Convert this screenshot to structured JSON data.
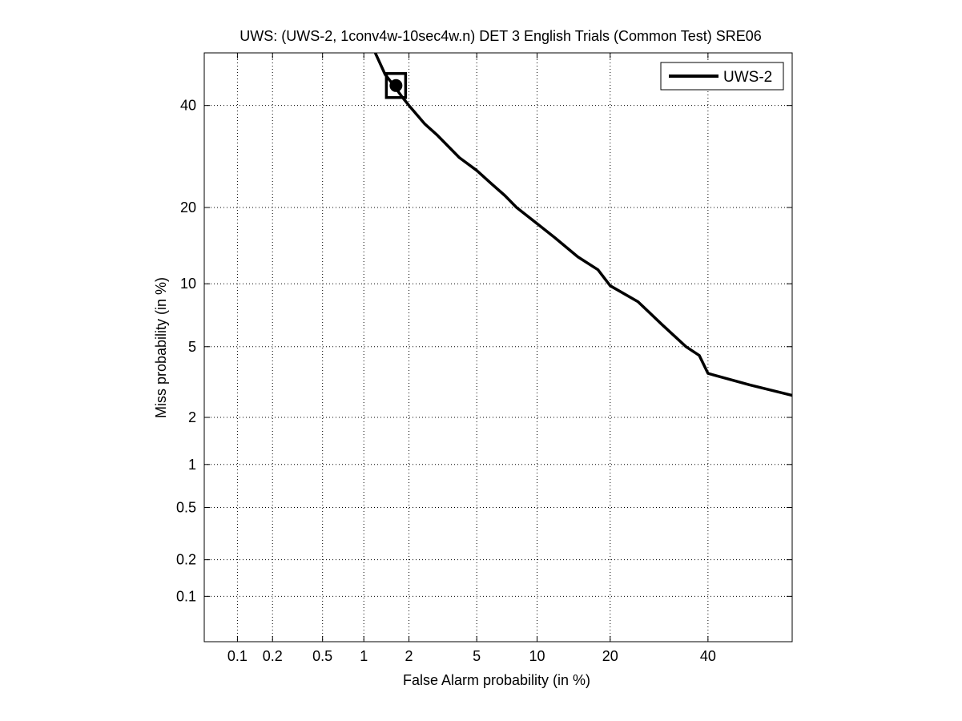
{
  "chart_data": {
    "type": "line",
    "title": "UWS: (UWS-2, 1conv4w-10sec4w.n) DET 3 English Trials (Common Test) SRE06",
    "xlabel": "False Alarm probability (in %)",
    "ylabel": "Miss probability (in %)",
    "scale": "normal-deviate (probit)",
    "grid": true,
    "legend_position": "top-right",
    "xlim": [
      0.05,
      60
    ],
    "ylim": [
      0.04,
      52
    ],
    "x_ticks": [
      0.1,
      0.2,
      0.5,
      1,
      2,
      5,
      10,
      20,
      40
    ],
    "x_tick_labels": [
      "0.1",
      "0.2",
      "0.5",
      "1",
      "2",
      "5",
      "10",
      "20",
      "40"
    ],
    "y_ticks": [
      0.1,
      0.2,
      0.5,
      1,
      2,
      5,
      10,
      20,
      40
    ],
    "y_tick_labels": [
      "0.1",
      "0.2",
      "0.5",
      "1",
      "2",
      "5",
      "10",
      "20",
      "40"
    ],
    "series": [
      {
        "name": "UWS-2",
        "color": "#000000",
        "x": [
          1.2,
          1.4,
          1.6,
          1.8,
          2.0,
          2.5,
          3.0,
          4.0,
          5.0,
          6.0,
          7.0,
          8.0,
          10.0,
          12.0,
          15.0,
          18.0,
          20.0,
          25.0,
          30.0,
          35.0,
          38.0,
          40.0,
          50.0,
          60.0
        ],
        "y": [
          52.0,
          47.0,
          44.5,
          42.0,
          40.0,
          36.0,
          33.5,
          29.0,
          26.5,
          24.0,
          22.0,
          20.0,
          17.5,
          15.5,
          13.0,
          11.5,
          9.8,
          8.3,
          6.4,
          5.0,
          4.5,
          3.6,
          3.1,
          2.7
        ]
      }
    ],
    "marker": {
      "shape": "filled-circle-in-square",
      "x": 1.65,
      "y": 44.5
    }
  }
}
